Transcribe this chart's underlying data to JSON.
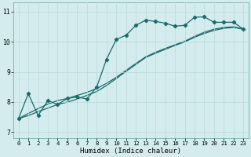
{
  "xlabel": "Humidex (Indice chaleur)",
  "xlim": [
    -0.5,
    23.5
  ],
  "ylim": [
    6.8,
    11.3
  ],
  "xticks": [
    0,
    1,
    2,
    3,
    4,
    5,
    6,
    7,
    8,
    9,
    10,
    11,
    12,
    13,
    14,
    15,
    16,
    17,
    18,
    19,
    20,
    21,
    22,
    23
  ],
  "yticks": [
    7,
    8,
    9,
    10,
    11
  ],
  "bg_color": "#d4ecee",
  "grid_color": "#b8d8da",
  "line_color": "#1a6b6b",
  "wiggly_x": [
    0,
    1,
    2,
    3,
    4,
    5,
    6,
    7,
    8,
    9,
    10,
    11,
    12,
    13,
    14,
    15,
    16,
    17,
    18,
    19,
    20,
    21,
    22,
    23
  ],
  "wiggly_y": [
    7.45,
    8.28,
    7.55,
    8.05,
    7.92,
    8.12,
    8.17,
    8.1,
    8.5,
    9.42,
    10.08,
    10.22,
    10.55,
    10.72,
    10.68,
    10.62,
    10.52,
    10.55,
    10.82,
    10.83,
    10.65,
    10.65,
    10.65,
    10.42
  ],
  "diag1_x": [
    0,
    1,
    2,
    3,
    4,
    5,
    6,
    7,
    8,
    9,
    10,
    11,
    12,
    13,
    14,
    15,
    16,
    17,
    18,
    19,
    20,
    21,
    22,
    23
  ],
  "diag1_y": [
    7.45,
    7.62,
    7.78,
    7.93,
    8.05,
    8.12,
    8.22,
    8.32,
    8.45,
    8.62,
    8.82,
    9.05,
    9.28,
    9.5,
    9.65,
    9.78,
    9.9,
    10.02,
    10.18,
    10.32,
    10.42,
    10.48,
    10.5,
    10.42
  ],
  "diag2_x": [
    0,
    1,
    2,
    3,
    4,
    5,
    6,
    7,
    8,
    9,
    10,
    11,
    12,
    13,
    14,
    15,
    16,
    17,
    18,
    19,
    20,
    21,
    22,
    23
  ],
  "diag2_y": [
    7.45,
    7.55,
    7.68,
    7.8,
    7.92,
    8.0,
    8.1,
    8.22,
    8.35,
    8.55,
    8.78,
    9.02,
    9.25,
    9.48,
    9.62,
    9.75,
    9.88,
    10.0,
    10.15,
    10.28,
    10.38,
    10.45,
    10.48,
    10.42
  ],
  "marker": "D",
  "markersize": 2.2,
  "linewidth": 0.9
}
